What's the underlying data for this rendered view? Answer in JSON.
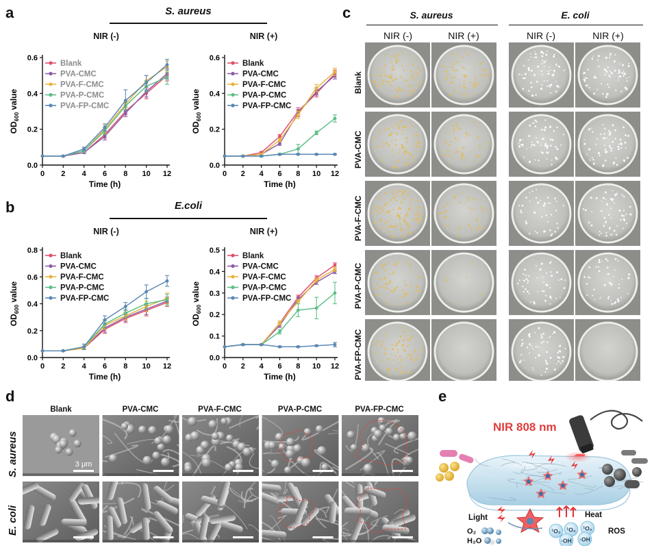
{
  "panels": {
    "a": {
      "letter": "a",
      "organism": "S. aureus",
      "left_title": "NIR (-)",
      "right_title": "NIR (+)"
    },
    "b": {
      "letter": "b",
      "organism": "E.coli",
      "left_title": "NIR (-)",
      "right_title": "NIR (+)"
    },
    "c": {
      "letter": "c",
      "groups": [
        {
          "organism": "S. aureus",
          "conditions": [
            "NIR (-)",
            "NIR (+)"
          ]
        },
        {
          "organism": "E. coli",
          "conditions": [
            "NIR (-)",
            "NIR (+)"
          ]
        }
      ],
      "rows": [
        "Blank",
        "PVA-CMC",
        "PVA-F-CMC",
        "PVA-P-CMC",
        "PVA-FP-CMC"
      ],
      "colony_colors": {
        "S. aureus": "#e0bd5a",
        "E. coli": "#ffffff"
      },
      "colony_density": [
        [
          90,
          70,
          70,
          65
        ],
        [
          90,
          55,
          60,
          60
        ],
        [
          130,
          45,
          40,
          55
        ],
        [
          60,
          8,
          50,
          45
        ],
        [
          75,
          1,
          55,
          0
        ]
      ]
    },
    "d": {
      "letter": "d",
      "columns": [
        "Blank",
        "PVA-CMC",
        "PVA-F-CMC",
        "PVA-P-CMC",
        "PVA-FP-CMC"
      ],
      "rows": [
        "S. aureus",
        "E. coli"
      ],
      "scale_label": "3 μm",
      "bacteria_shape": {
        "S. aureus": "cocci",
        "E. coli": "rods"
      },
      "damage_outline_color": "#d9473f"
    },
    "e": {
      "letter": "e",
      "laser_label": "NIR 808 nm",
      "light_label": "Light",
      "heat_label": "Heat",
      "ros_label": "ROS",
      "reactants": [
        "O₂",
        "H₂O"
      ],
      "ros_species": [
        "¹O₂",
        "¹O₂",
        "¹O₂",
        "·OH",
        "·OH"
      ],
      "colors": {
        "laser": "#e03c3c",
        "gel": "#cfe6f3",
        "bacteria_left": "#e8c44a",
        "bacteria_left_rod": "#e57fb2",
        "bacteria_right": "#5b5b5b"
      }
    }
  },
  "chart_common": {
    "ylabel": "OD600 value",
    "ylabel_main": "OD",
    "ylabel_sub": "600",
    "ylabel_tail": " value",
    "xlabel": "Time (h)"
  },
  "chart_data": [
    {
      "type": "line",
      "title": "NIR (-)",
      "organism": "S. aureus",
      "xlabel": "Time (h)",
      "ylabel": "OD600 value",
      "xlim": [
        0,
        12
      ],
      "xticks": [
        0,
        2,
        4,
        6,
        8,
        10,
        12
      ],
      "ylim": [
        0,
        0.6
      ],
      "yticks": [
        "0.0",
        "0.2",
        "0.4",
        "0.6"
      ],
      "legend": "top-left",
      "x": [
        0,
        2,
        4,
        6,
        8,
        10,
        12
      ],
      "series": [
        {
          "name": "Blank",
          "color": "#e0506a",
          "values": [
            0.05,
            0.05,
            0.07,
            0.17,
            0.3,
            0.4,
            0.5
          ],
          "err": [
            0,
            0.003,
            0.005,
            0.02,
            0.02,
            0.03,
            0.03
          ]
        },
        {
          "name": "PVA-CMC",
          "color": "#8e5aa8",
          "values": [
            0.05,
            0.05,
            0.07,
            0.16,
            0.29,
            0.41,
            0.51
          ],
          "err": [
            0,
            0.003,
            0.005,
            0.02,
            0.02,
            0.03,
            0.03
          ]
        },
        {
          "name": "PVA-F-CMC",
          "color": "#e8b53c",
          "values": [
            0.05,
            0.05,
            0.08,
            0.2,
            0.34,
            0.47,
            0.55
          ],
          "err": [
            0,
            0.003,
            0.01,
            0.02,
            0.02,
            0.03,
            0.03
          ]
        },
        {
          "name": "PVA-P-CMC",
          "color": "#5cbf86",
          "values": [
            0.05,
            0.05,
            0.08,
            0.19,
            0.33,
            0.44,
            0.49
          ],
          "err": [
            0,
            0.003,
            0.01,
            0.02,
            0.02,
            0.03,
            0.04
          ]
        },
        {
          "name": "PVA-FP-CMC",
          "color": "#5b87b5",
          "values": [
            0.05,
            0.05,
            0.09,
            0.21,
            0.36,
            0.46,
            0.56
          ],
          "err": [
            0,
            0.003,
            0.01,
            0.02,
            0.06,
            0.04,
            0.03
          ]
        }
      ]
    },
    {
      "type": "line",
      "title": "NIR (+)",
      "organism": "S. aureus",
      "xlabel": "Time (h)",
      "ylabel": "OD600 value",
      "xlim": [
        0,
        12
      ],
      "xticks": [
        0,
        2,
        4,
        6,
        8,
        10,
        12
      ],
      "ylim": [
        0,
        0.6
      ],
      "yticks": [
        "0.0",
        "0.2",
        "0.4",
        "0.6"
      ],
      "legend": "top-left",
      "x": [
        0,
        2,
        4,
        6,
        8,
        10,
        12
      ],
      "series": [
        {
          "name": "Blank",
          "color": "#e0506a",
          "values": [
            0.05,
            0.05,
            0.07,
            0.16,
            0.3,
            0.4,
            0.51
          ],
          "err": [
            0,
            0.003,
            0.005,
            0.01,
            0.02,
            0.02,
            0.02
          ]
        },
        {
          "name": "PVA-CMC",
          "color": "#8e5aa8",
          "values": [
            0.05,
            0.05,
            0.06,
            0.12,
            0.29,
            0.41,
            0.5
          ],
          "err": [
            0,
            0.003,
            0.005,
            0.01,
            0.02,
            0.02,
            0.02
          ]
        },
        {
          "name": "PVA-F-CMC",
          "color": "#e8b53c",
          "values": [
            0.05,
            0.05,
            0.06,
            0.14,
            0.28,
            0.43,
            0.52
          ],
          "err": [
            0,
            0.003,
            0.005,
            0.01,
            0.02,
            0.02,
            0.02
          ]
        },
        {
          "name": "PVA-P-CMC",
          "color": "#5cbf86",
          "values": [
            0.05,
            0.05,
            0.05,
            0.06,
            0.09,
            0.18,
            0.26
          ],
          "err": [
            0,
            0.003,
            0.004,
            0.005,
            0.025,
            0.01,
            0.02
          ]
        },
        {
          "name": "PVA-FP-CMC",
          "color": "#5b87b5",
          "values": [
            0.05,
            0.05,
            0.05,
            0.06,
            0.06,
            0.06,
            0.06
          ],
          "err": [
            0,
            0.002,
            0.002,
            0.003,
            0.003,
            0.003,
            0.003
          ]
        }
      ]
    },
    {
      "type": "line",
      "title": "NIR (-)",
      "organism": "E.coli",
      "xlabel": "Time (h)",
      "ylabel": "OD600 value",
      "xlim": [
        0,
        12
      ],
      "xticks": [
        0,
        2,
        4,
        6,
        8,
        10,
        12
      ],
      "ylim": [
        0,
        0.8
      ],
      "yticks": [
        "0.0",
        "0.2",
        "0.4",
        "0.6",
        "0.8"
      ],
      "legend": "top-left",
      "x": [
        0,
        2,
        4,
        6,
        8,
        10,
        12
      ],
      "series": [
        {
          "name": "Blank",
          "color": "#e0506a",
          "values": [
            0.05,
            0.05,
            0.07,
            0.21,
            0.29,
            0.35,
            0.41
          ],
          "err": [
            0,
            0.003,
            0.01,
            0.03,
            0.03,
            0.04,
            0.03
          ]
        },
        {
          "name": "PVA-CMC",
          "color": "#8e5aa8",
          "values": [
            0.05,
            0.05,
            0.07,
            0.22,
            0.3,
            0.36,
            0.42
          ],
          "err": [
            0,
            0.003,
            0.01,
            0.03,
            0.03,
            0.04,
            0.03
          ]
        },
        {
          "name": "PVA-F-CMC",
          "color": "#e8b53c",
          "values": [
            0.05,
            0.05,
            0.07,
            0.24,
            0.31,
            0.38,
            0.44
          ],
          "err": [
            0,
            0.003,
            0.01,
            0.03,
            0.03,
            0.04,
            0.04
          ]
        },
        {
          "name": "PVA-P-CMC",
          "color": "#5cbf86",
          "values": [
            0.05,
            0.05,
            0.08,
            0.25,
            0.33,
            0.4,
            0.43
          ],
          "err": [
            0,
            0.003,
            0.02,
            0.03,
            0.03,
            0.04,
            0.04
          ]
        },
        {
          "name": "PVA-FP-CMC",
          "color": "#5b87b5",
          "values": [
            0.05,
            0.05,
            0.08,
            0.28,
            0.38,
            0.49,
            0.57
          ],
          "err": [
            0,
            0.003,
            0.02,
            0.03,
            0.03,
            0.05,
            0.04
          ]
        }
      ]
    },
    {
      "type": "line",
      "title": "NIR (+)",
      "organism": "E.coli",
      "xlabel": "Time (h)",
      "ylabel": "OD600 value",
      "xlim": [
        0,
        12
      ],
      "xticks": [
        0,
        2,
        4,
        6,
        8,
        10,
        12
      ],
      "ylim": [
        0,
        0.5
      ],
      "yticks": [
        "0.0",
        "0.1",
        "0.2",
        "0.3",
        "0.4",
        "0.5"
      ],
      "legend": "top-left",
      "x": [
        0,
        2,
        4,
        6,
        8,
        10,
        12
      ],
      "series": [
        {
          "name": "Blank",
          "color": "#e0506a",
          "values": [
            0.05,
            0.06,
            0.06,
            0.16,
            0.28,
            0.37,
            0.43
          ],
          "err": [
            0,
            0.003,
            0.003,
            0.01,
            0.01,
            0.01,
            0.01
          ]
        },
        {
          "name": "PVA-CMC",
          "color": "#8e5aa8",
          "values": [
            0.05,
            0.06,
            0.06,
            0.15,
            0.27,
            0.35,
            0.4
          ],
          "err": [
            0,
            0.003,
            0.003,
            0.01,
            0.01,
            0.01,
            0.01
          ]
        },
        {
          "name": "PVA-F-CMC",
          "color": "#e8b53c",
          "values": [
            0.05,
            0.06,
            0.06,
            0.16,
            0.26,
            0.36,
            0.41
          ],
          "err": [
            0,
            0.003,
            0.003,
            0.01,
            0.01,
            0.01,
            0.01
          ]
        },
        {
          "name": "PVA-P-CMC",
          "color": "#5cbf86",
          "values": [
            0.05,
            0.06,
            0.06,
            0.12,
            0.22,
            0.23,
            0.3
          ],
          "err": [
            0,
            0.003,
            0.003,
            0.01,
            0.03,
            0.05,
            0.05
          ]
        },
        {
          "name": "PVA-FP-CMC",
          "color": "#5b87b5",
          "values": [
            0.05,
            0.06,
            0.06,
            0.05,
            0.05,
            0.055,
            0.06
          ],
          "err": [
            0,
            0.002,
            0.002,
            0.003,
            0.003,
            0.003,
            0.01
          ]
        }
      ]
    }
  ]
}
